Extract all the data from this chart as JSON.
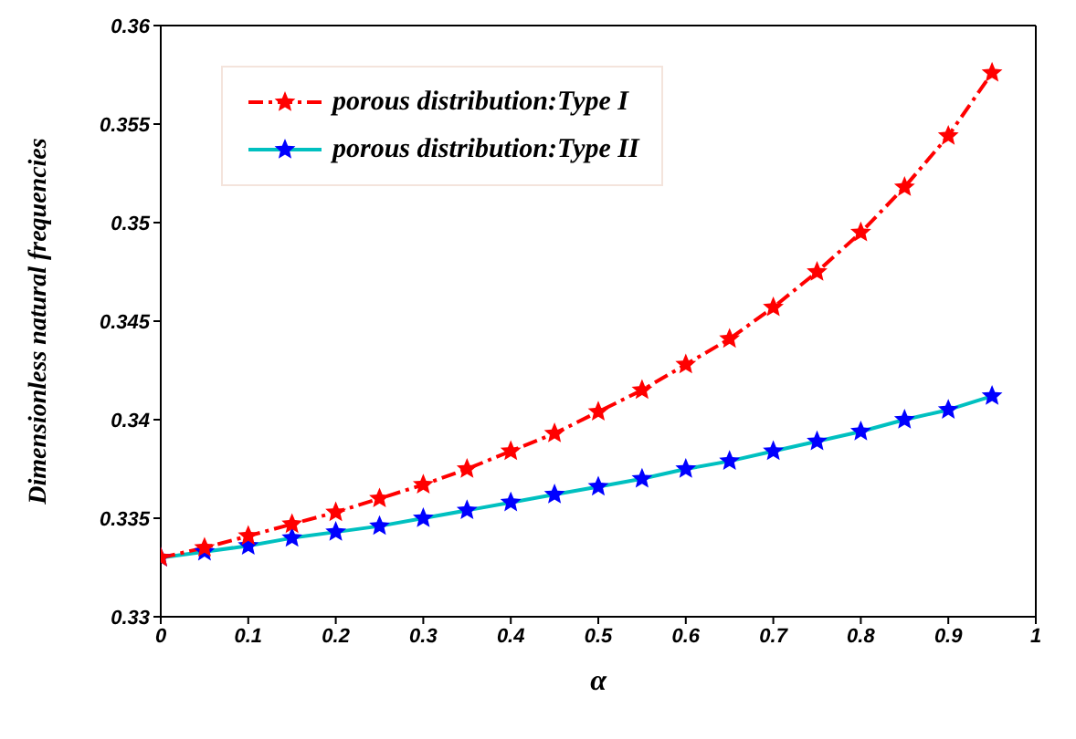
{
  "chart_data": {
    "type": "line",
    "xlabel": "α",
    "ylabel": "Dimensionless natural frequencies",
    "x": [
      0,
      0.05,
      0.1,
      0.15,
      0.2,
      0.25,
      0.3,
      0.35,
      0.4,
      0.45,
      0.5,
      0.55,
      0.6,
      0.65,
      0.7,
      0.75,
      0.8,
      0.85,
      0.9,
      0.95
    ],
    "series": [
      {
        "name": "porous distribution:Type I",
        "color": "#ff0000",
        "line_style": "dashed",
        "marker": "star",
        "values": [
          0.333,
          0.3335,
          0.3341,
          0.3347,
          0.3353,
          0.336,
          0.3367,
          0.3375,
          0.3384,
          0.3393,
          0.3404,
          0.3415,
          0.3428,
          0.3441,
          0.3457,
          0.3475,
          0.3495,
          0.3518,
          0.3544,
          0.3576
        ]
      },
      {
        "name": "porous distribution:Type II",
        "color": "#00c0c0",
        "colors": [
          "#0000ff",
          "#0000ff",
          "#0000ff",
          "#0000ff",
          "#0000ff",
          "#0000ff",
          "#0000ff",
          "#0000ff",
          "#0000ff",
          "#0000ff",
          "#0000ff",
          "#0000ff",
          "#0000ff",
          "#0000ff",
          "#0000ff",
          "#0000ff",
          "#0000ff",
          "#0000ff",
          "#0000ff",
          "#0000ff"
        ],
        "line_style": "solid",
        "marker": "star",
        "values": [
          0.333,
          0.3333,
          0.3336,
          0.334,
          0.3343,
          0.3346,
          0.335,
          0.3354,
          0.3358,
          0.3362,
          0.3366,
          0.337,
          0.3375,
          0.3379,
          0.3384,
          0.3389,
          0.3394,
          0.34,
          0.3405,
          0.3412
        ]
      }
    ],
    "xlim": [
      0,
      1
    ],
    "xticks": [
      0,
      0.1,
      0.2,
      0.3,
      0.4,
      0.5,
      0.6,
      0.7,
      0.8,
      0.9,
      1
    ],
    "ylim": [
      0.33,
      0.36
    ],
    "yticks": [
      0.33,
      0.335,
      0.34,
      0.345,
      0.35,
      0.355,
      0.36
    ],
    "grid": false,
    "legend": "top left"
  }
}
